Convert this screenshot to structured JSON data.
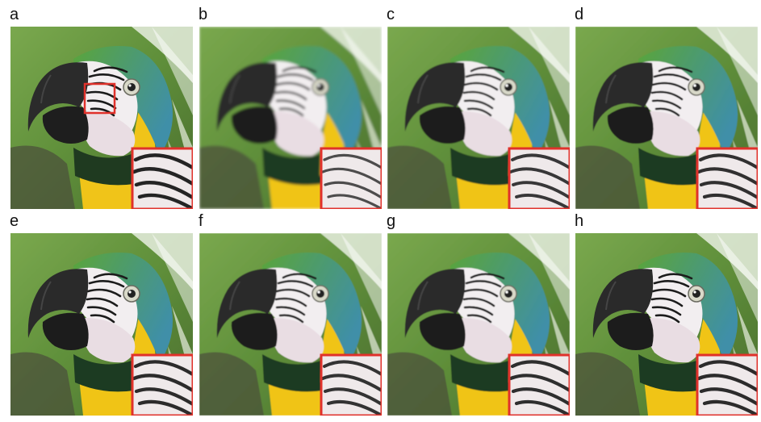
{
  "figure": {
    "panels": [
      {
        "label": "a",
        "has_roi_box": true,
        "blur": 0
      },
      {
        "label": "b",
        "has_roi_box": false,
        "blur": 1.6
      },
      {
        "label": "c",
        "has_roi_box": false,
        "blur": 0.8
      },
      {
        "label": "d",
        "has_roi_box": false,
        "blur": 0.5
      },
      {
        "label": "e",
        "has_roi_box": false,
        "blur": 0.3
      },
      {
        "label": "f",
        "has_roi_box": false,
        "blur": 0.6
      },
      {
        "label": "g",
        "has_roi_box": false,
        "blur": 0.4
      },
      {
        "label": "h",
        "has_roi_box": false,
        "blur": 0.3
      }
    ],
    "colors": {
      "background_green": "#5f8f3a",
      "leaf_light": "#e8eee0",
      "crown_green": "#5aa53a",
      "nape_blue": "#3f8fa8",
      "face_white": "#f2eef0",
      "stripe_black": "#1a1a1a",
      "beak_dark": "#2b2b2b",
      "throat_white": "#e9dde3",
      "chest_yellow": "#f0c419",
      "neck_dark_green": "#1f3a20",
      "eye_ring": "#d9d9c9",
      "roi_box_red": "#e0312b"
    }
  }
}
